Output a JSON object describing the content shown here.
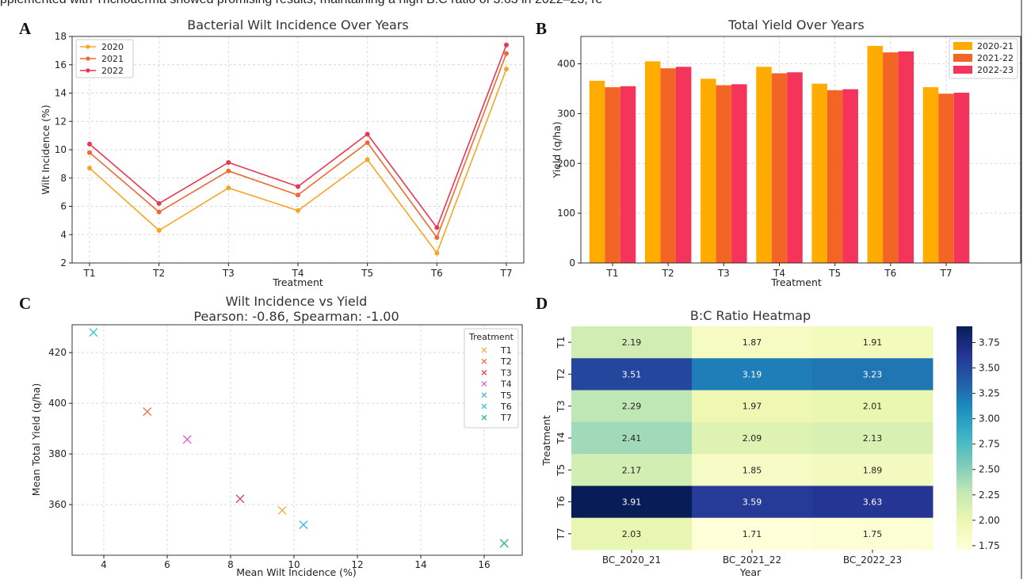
{
  "page_top_text": "pplemented with Trichoderma showed promising results, maintaining a high B:C ratio of 3.63 in 2022–23, re",
  "panels": {
    "a": {
      "letter": "A"
    },
    "b": {
      "letter": "B"
    },
    "c": {
      "letter": "C"
    },
    "d": {
      "letter": "D"
    }
  },
  "chart_data": [
    {
      "type": "line",
      "title": "Bacterial Wilt Incidence Over Years",
      "xlabel": "Treatment",
      "ylabel": "Wilt Incidence (%)",
      "categories": [
        "T1",
        "T2",
        "T3",
        "T4",
        "T5",
        "T6",
        "T7"
      ],
      "ylim": [
        2,
        18
      ],
      "yticks": [
        2,
        4,
        6,
        8,
        10,
        12,
        14,
        16,
        18
      ],
      "grid": true,
      "legend_position": "top-left",
      "series": [
        {
          "name": "2020",
          "color": "#f5a623",
          "values": [
            8.7,
            4.3,
            7.3,
            5.7,
            9.3,
            2.7,
            15.7
          ]
        },
        {
          "name": "2021",
          "color": "#ee6a35",
          "values": [
            9.8,
            5.6,
            8.5,
            6.8,
            10.5,
            3.8,
            16.8
          ]
        },
        {
          "name": "2022",
          "color": "#e63950",
          "values": [
            10.4,
            6.2,
            9.1,
            7.4,
            11.1,
            4.5,
            17.4
          ]
        }
      ]
    },
    {
      "type": "bar",
      "title": "Total Yield Over Years",
      "xlabel": "Treatment",
      "ylabel": "Yield (q/ha)",
      "categories": [
        "T1",
        "T2",
        "T3",
        "T4",
        "T5",
        "T6",
        "T7"
      ],
      "ylim": [
        0,
        455
      ],
      "yticks": [
        0,
        100,
        200,
        300,
        400
      ],
      "grid": true,
      "legend_position": "top-right",
      "series": [
        {
          "name": "2020-21",
          "color": "#ffab00",
          "values": [
            366,
            405,
            370,
            394,
            360,
            436,
            353
          ]
        },
        {
          "name": "2021-22",
          "color": "#f26524",
          "values": [
            353,
            391,
            357,
            381,
            347,
            423,
            340
          ]
        },
        {
          "name": "2022-23",
          "color": "#f4345a",
          "values": [
            355,
            394,
            359,
            383,
            349,
            425,
            342
          ]
        }
      ]
    },
    {
      "type": "scatter",
      "title": "Wilt Incidence vs Yield",
      "subtitle": "Pearson: -0.86, Spearman: -1.00",
      "xlabel": "Mean Wilt Incidence (%)",
      "ylabel": "Mean Total Yield (q/ha)",
      "xlim": [
        3.0,
        17.2
      ],
      "ylim": [
        340,
        431
      ],
      "xticks": [
        4,
        6,
        8,
        10,
        12,
        14,
        16
      ],
      "yticks": [
        360,
        380,
        400,
        420
      ],
      "grid": true,
      "legend_title": "Treatment",
      "legend_position": "top-right",
      "series": [
        {
          "name": "T1",
          "color": "#f0b440",
          "x": 9.63,
          "y": 357.7
        },
        {
          "name": "T2",
          "color": "#ee7040",
          "x": 5.37,
          "y": 396.7
        },
        {
          "name": "T3",
          "color": "#e0405a",
          "x": 8.3,
          "y": 362.3
        },
        {
          "name": "T4",
          "color": "#dc5fd2",
          "x": 6.63,
          "y": 385.7
        },
        {
          "name": "T5",
          "color": "#3fb8e8",
          "x": 10.3,
          "y": 352.0
        },
        {
          "name": "T6",
          "color": "#3ec7c7",
          "x": 3.67,
          "y": 428.0
        },
        {
          "name": "T7",
          "color": "#2eb872",
          "x": 16.63,
          "y": 344.7
        }
      ]
    },
    {
      "type": "heatmap",
      "title": "B:C Ratio Heatmap",
      "xlabel": "Year",
      "ylabel": "Treatment",
      "columns": [
        "BC_2020_21",
        "BC_2021_22",
        "BC_2022_23"
      ],
      "rows": [
        "T1",
        "T2",
        "T3",
        "T4",
        "T5",
        "T6",
        "T7"
      ],
      "values": [
        [
          2.19,
          1.87,
          1.91
        ],
        [
          3.51,
          3.19,
          3.23
        ],
        [
          2.29,
          1.97,
          2.01
        ],
        [
          2.41,
          2.09,
          2.13
        ],
        [
          2.17,
          1.85,
          1.89
        ],
        [
          3.91,
          3.59,
          3.63
        ],
        [
          2.03,
          1.71,
          1.75
        ]
      ],
      "colorbar_range": [
        1.71,
        3.91
      ],
      "colorbar_ticks": [
        "1.75",
        "2.00",
        "2.25",
        "2.50",
        "2.75",
        "3.00",
        "3.25",
        "3.50",
        "3.75"
      ],
      "colormap": "YlGnBu"
    }
  ]
}
